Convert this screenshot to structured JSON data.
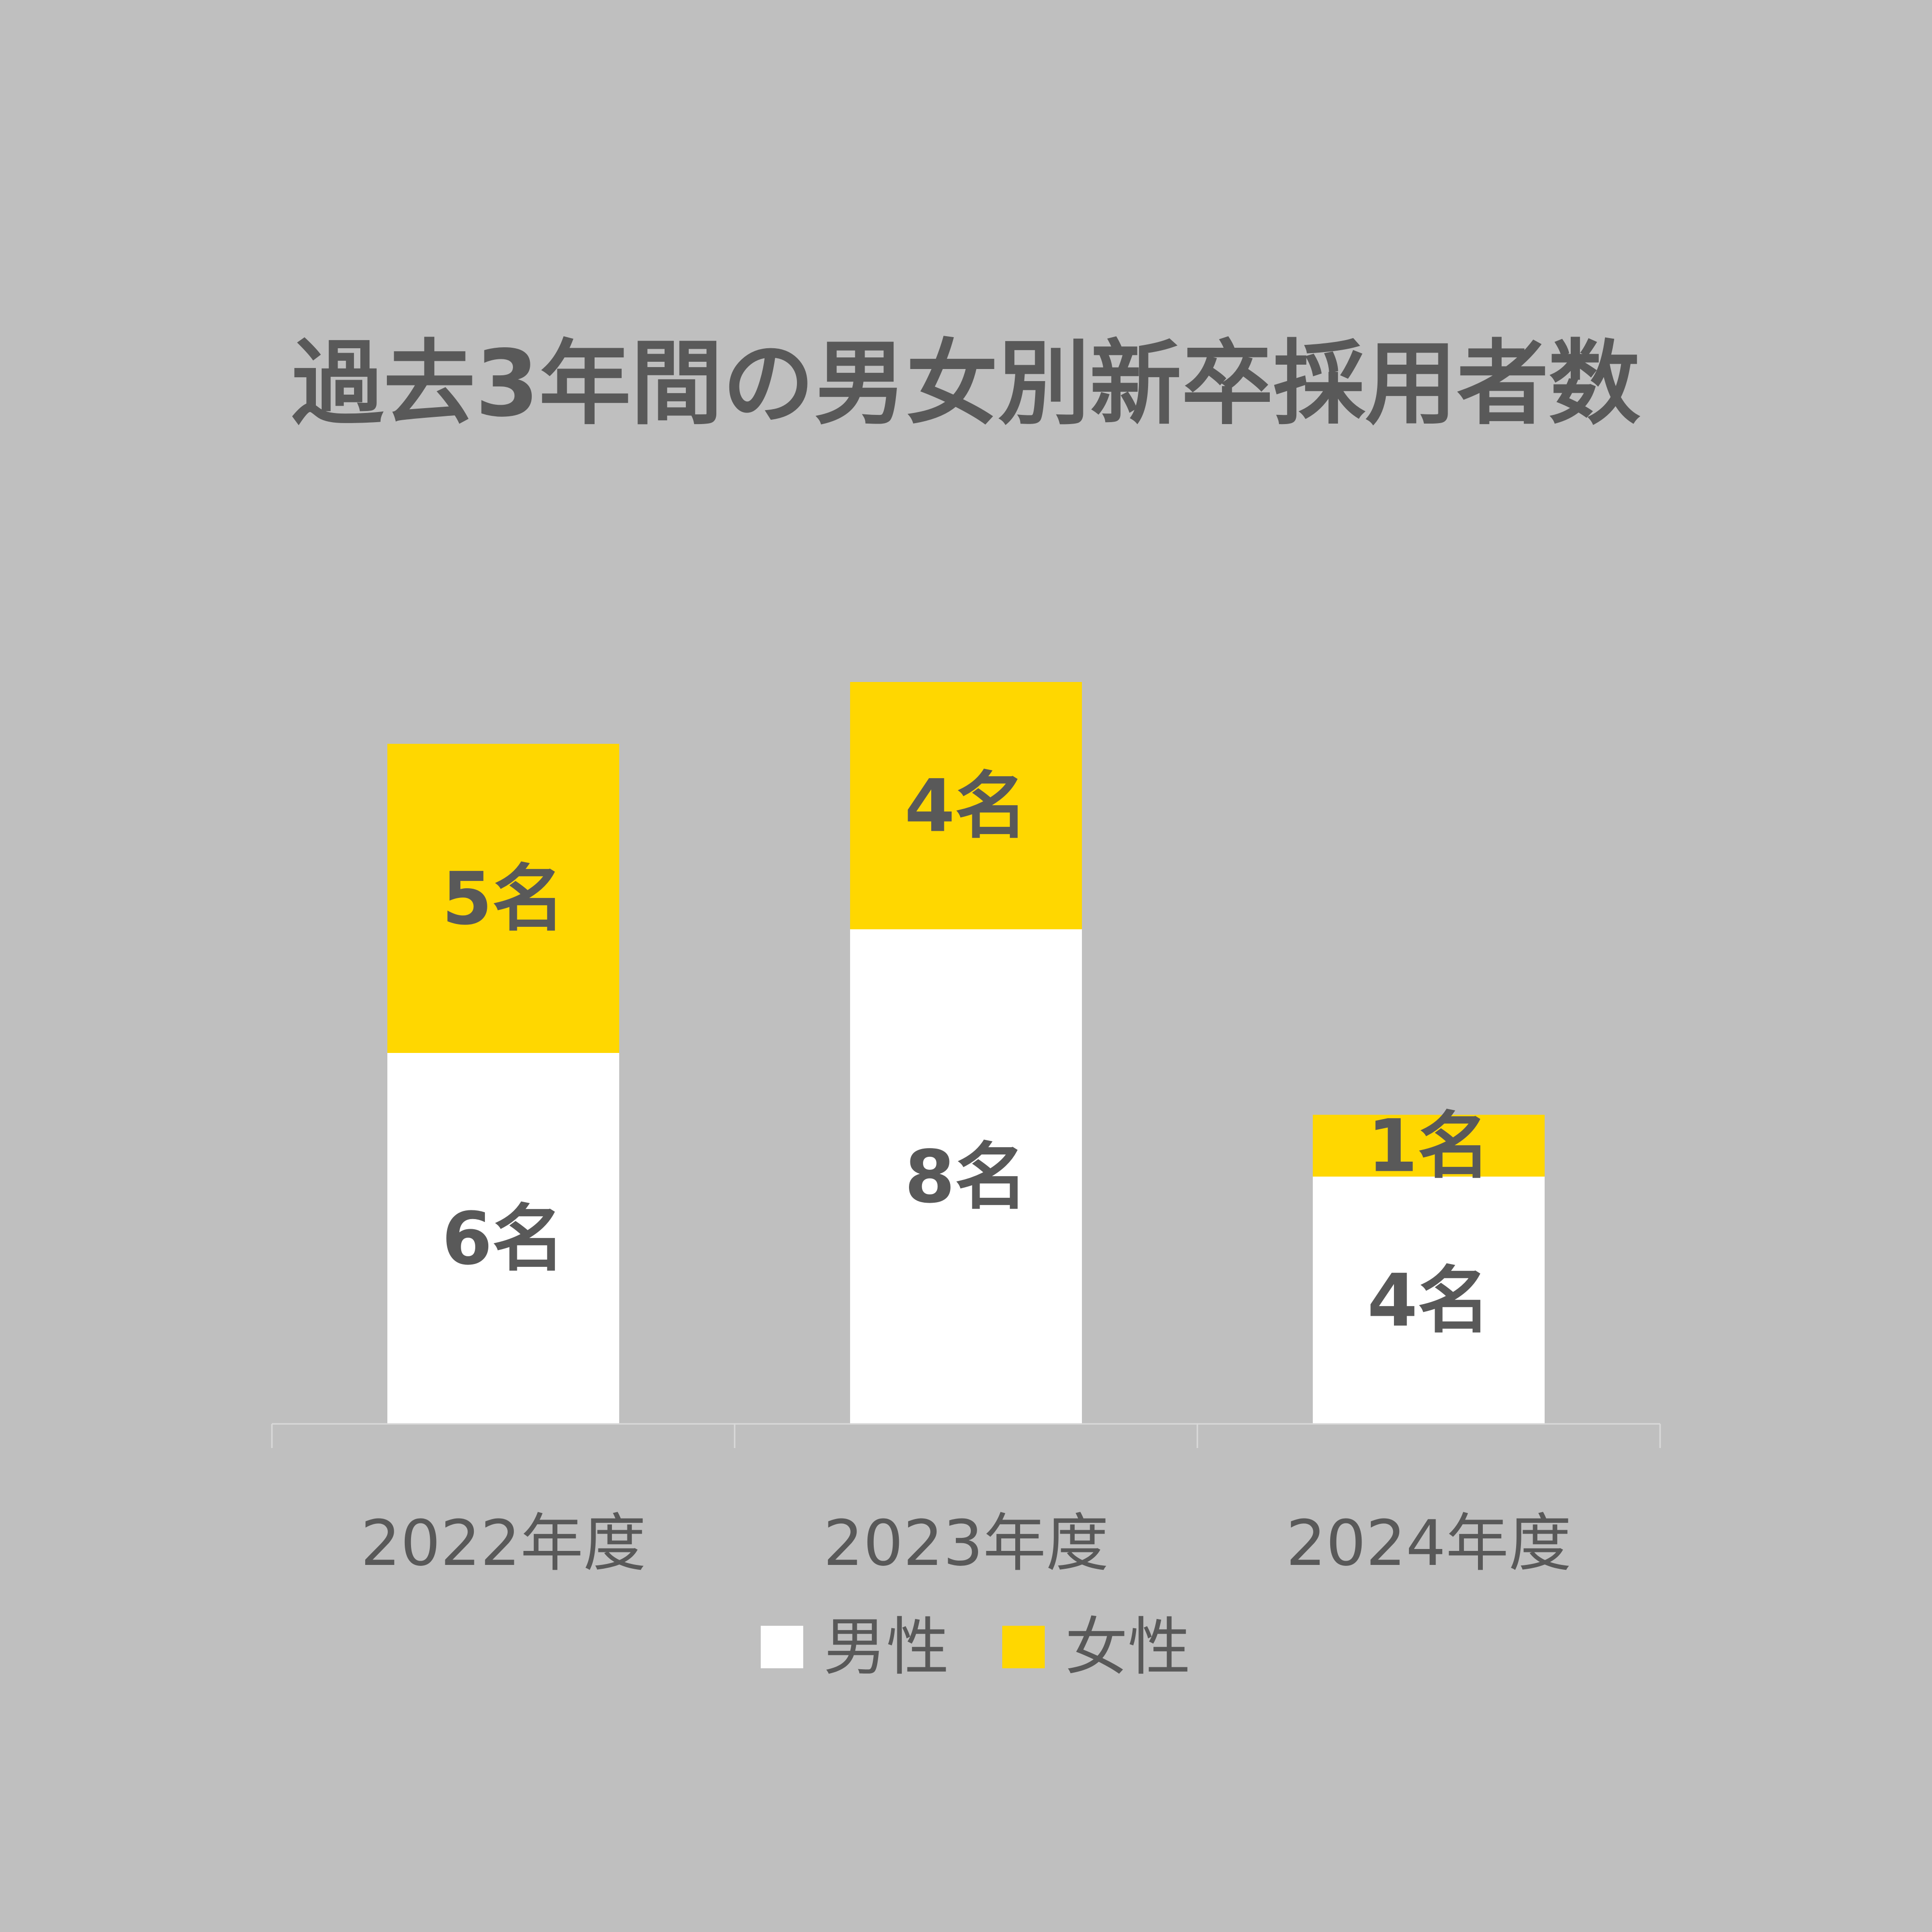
{
  "chart_data": {
    "type": "bar",
    "stacked": true,
    "title": "過去3年間の男女別新卒採用者数",
    "categories": [
      "2022年度",
      "2023年度",
      "2024年度"
    ],
    "series": [
      {
        "name": "男性",
        "values": [
          6,
          8,
          4
        ],
        "labels": [
          "6名",
          "8名",
          "4名"
        ],
        "color": "#ffffff"
      },
      {
        "name": "女性",
        "values": [
          5,
          4,
          1
        ],
        "labels": [
          "5名",
          "4名",
          "1名"
        ],
        "color": "#ffd700"
      }
    ],
    "ylim": [
      0,
      12
    ],
    "grid": false,
    "legend_position": "bottom"
  },
  "colors": {
    "background": "#bfbfbf",
    "text": "#595959",
    "axis_line": "#d9d9d9"
  }
}
